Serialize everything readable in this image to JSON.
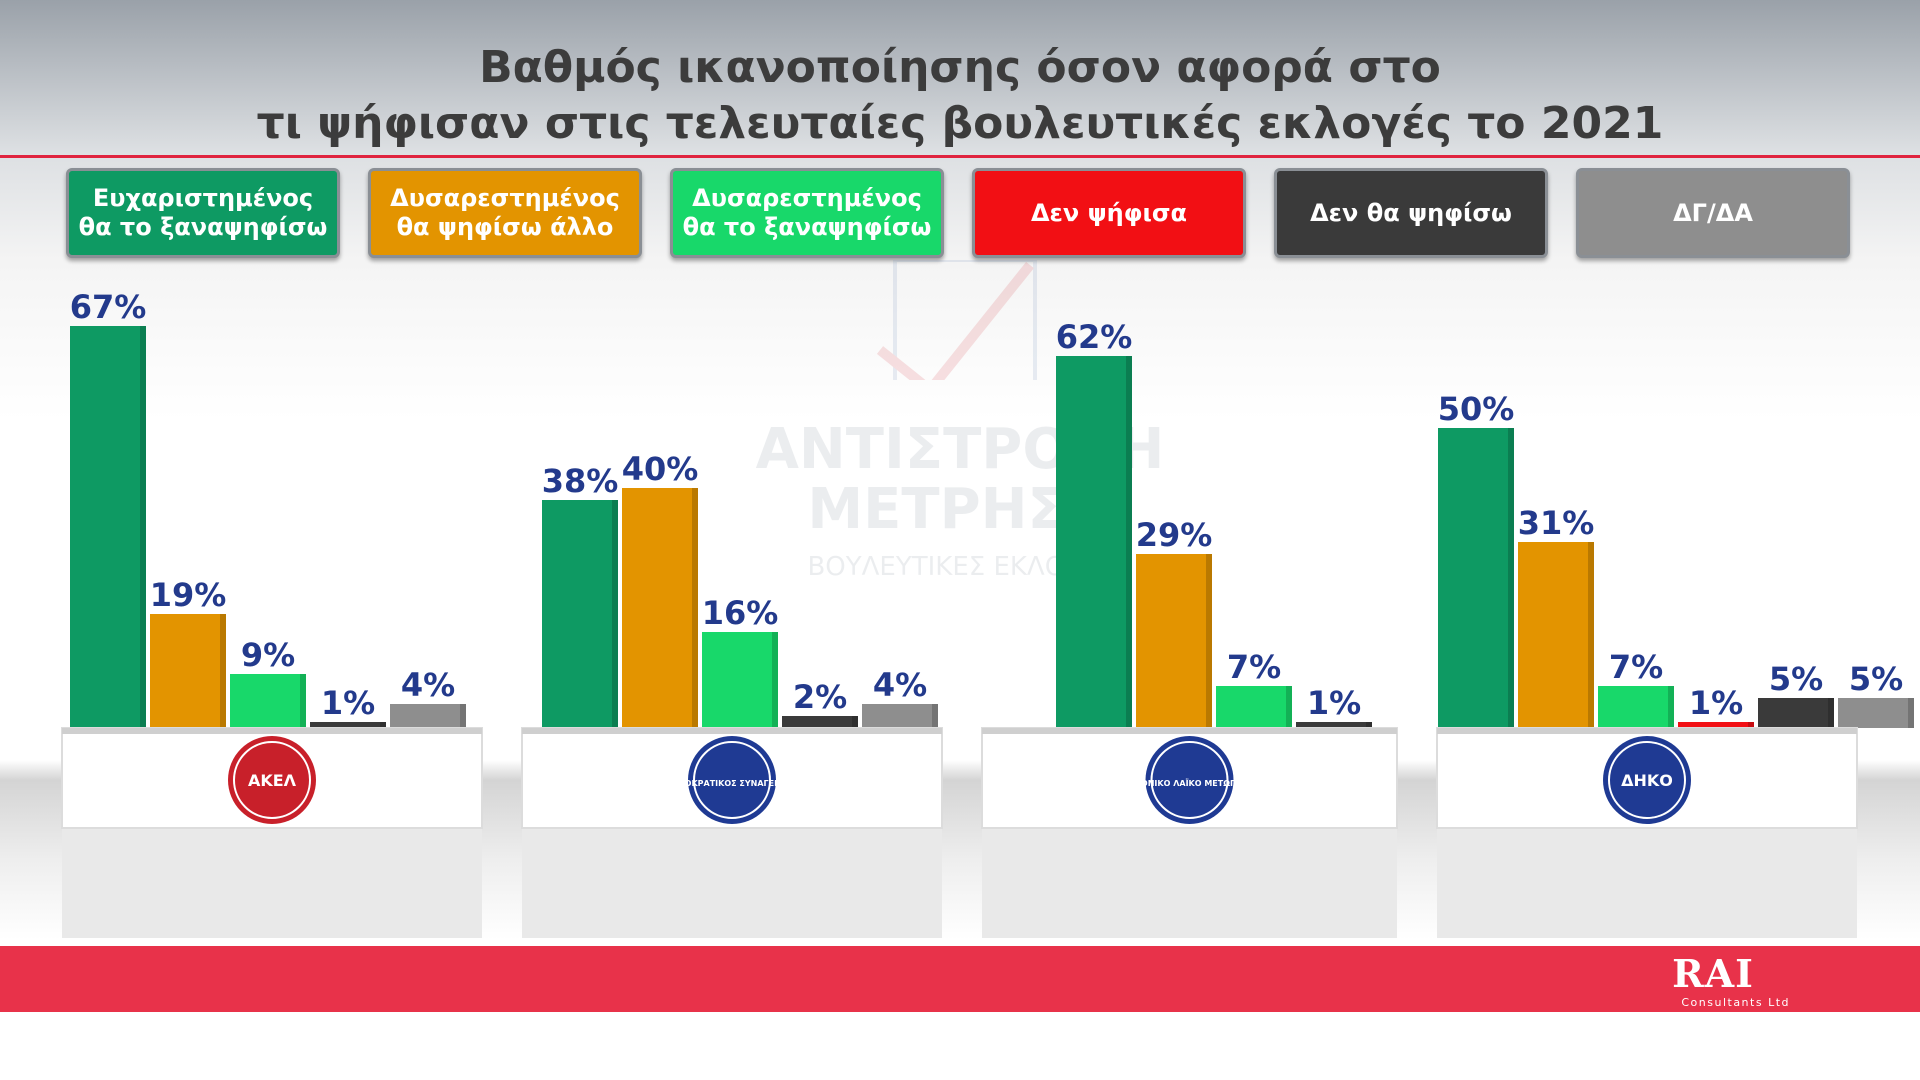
{
  "title_line1": "Βαθμός ικανοποίησης όσον αφορά στο",
  "title_line2": "τι ψήφισαν στις τελευταίες βουλευτικές εκλογές το 2021",
  "legend": [
    {
      "label": "Ευχαριστημένος\nθα το ξαναψηφίσω",
      "color": "#0e9a63"
    },
    {
      "label": "Δυσαρεστημένος\nθα ψηφίσω άλλο",
      "color": "#e39400"
    },
    {
      "label": "Δυσαρεστημένος\nθα το ξαναψηφίσω",
      "color": "#18d86a"
    },
    {
      "label": "Δεν ψήφισα",
      "color": "#f20f14"
    },
    {
      "label": "Δεν θα ψηφίσω",
      "color": "#3a3a3a"
    },
    {
      "label": "ΔΓ/ΔΑ",
      "color": "#8e8e8e"
    }
  ],
  "watermark": {
    "line1": "ΑΝΤΙΣΤΡΟΦΗ",
    "line2": "ΜΕΤΡΗΣΗ",
    "line3": "ΒΟΥΛΕΥΤΙΚΕΣ ΕΚΛΟΓΕΣ"
  },
  "chart_data": {
    "type": "bar",
    "value_suffix": "%",
    "ylim": [
      0,
      75
    ],
    "grid": false,
    "legend_position": "top",
    "series_names": [
      "Ευχαριστημένος θα το ξαναψηφίσω",
      "Δυσαρεστημένος θα ψηφίσω άλλο",
      "Δυσαρεστημένος θα το ξαναψηφίσω",
      "Δεν ψήφισα",
      "Δεν θα ψηφίσω",
      "ΔΓ/ΔΑ"
    ],
    "groups": [
      {
        "logo": "akel-logo",
        "logo_text": "ΑΚΕΛ",
        "values": [
          67,
          19,
          9,
          1,
          4
        ]
      },
      {
        "logo": "disy-logo",
        "logo_text": "ΔΗΜΟΚΡΑΤΙΚΟΣ ΣΥΝΑΓΕΡΜΟΣ",
        "values": [
          38,
          40,
          16,
          2,
          4
        ]
      },
      {
        "logo": "elam-logo",
        "logo_text": "ΕΘΝΙΚΟ ΛΑΪΚΟ ΜΕΤΩΠΟ",
        "values": [
          62,
          29,
          7,
          1
        ]
      },
      {
        "logo": "diko-logo",
        "logo_text": "ΔΗΚΟ",
        "values": [
          50,
          31,
          7,
          1,
          5,
          5
        ]
      }
    ],
    "group_series_order": [
      [
        0,
        1,
        2,
        4,
        5
      ],
      [
        0,
        1,
        2,
        4,
        5
      ],
      [
        0,
        1,
        2,
        4
      ],
      [
        0,
        1,
        2,
        3,
        4,
        5
      ]
    ]
  },
  "brand": {
    "name": "RAI",
    "sub": "Consultants Ltd"
  }
}
